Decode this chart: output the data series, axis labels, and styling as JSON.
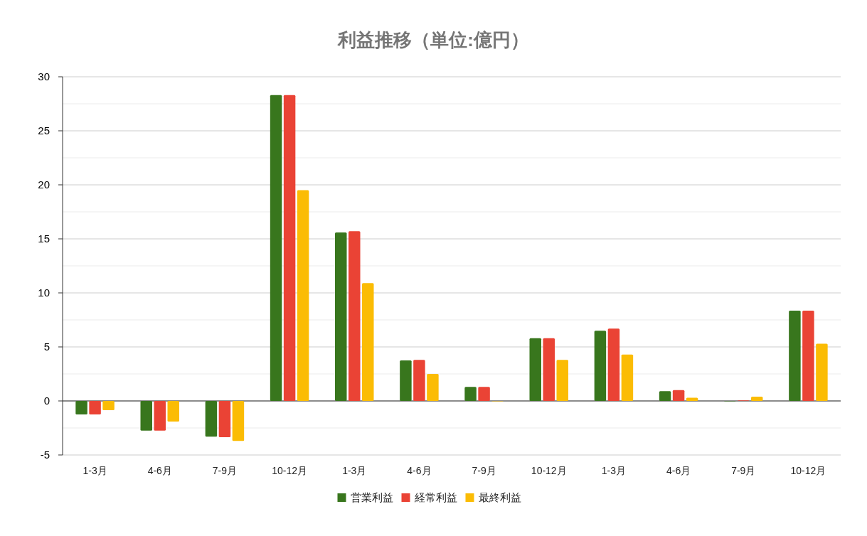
{
  "chart_data": {
    "type": "bar",
    "title": "利益推移（単位:億円）",
    "categories": [
      "1-3月",
      "4-6月",
      "7-9月",
      "10-12月",
      "1-3月",
      "4-6月",
      "7-9月",
      "10-12月",
      "1-3月",
      "4-6月",
      "7-9月",
      "10-12月"
    ],
    "series": [
      {
        "name": "営業利益",
        "color": "#38761d",
        "values": [
          -1.25,
          -2.75,
          -3.3,
          28.3,
          15.6,
          3.75,
          1.3,
          5.8,
          6.5,
          0.9,
          0.0,
          8.35
        ]
      },
      {
        "name": "経常利益",
        "color": "#ea4335",
        "values": [
          -1.25,
          -2.75,
          -3.35,
          28.3,
          15.7,
          3.8,
          1.3,
          5.8,
          6.7,
          1.0,
          0.05,
          8.35
        ]
      },
      {
        "name": "最終利益",
        "color": "#fbbc04",
        "values": [
          -0.85,
          -1.9,
          -3.7,
          19.5,
          10.9,
          2.5,
          0.0,
          3.8,
          4.3,
          0.3,
          0.4,
          5.3
        ]
      }
    ],
    "ylim": [
      -5,
      30
    ],
    "yticks": [
      -5,
      {
        "value": -2.5,
        "label": null
      },
      0,
      {
        "value": 2.5,
        "label": null
      },
      5,
      {
        "value": 7.5,
        "label": null
      },
      10,
      {
        "value": 12.5,
        "label": null
      },
      15,
      {
        "value": 17.5,
        "label": null
      },
      20,
      {
        "value": 22.5,
        "label": null
      },
      25,
      {
        "value": 27.5,
        "label": null
      },
      30
    ],
    "grid": "y",
    "legend": "bottom"
  }
}
